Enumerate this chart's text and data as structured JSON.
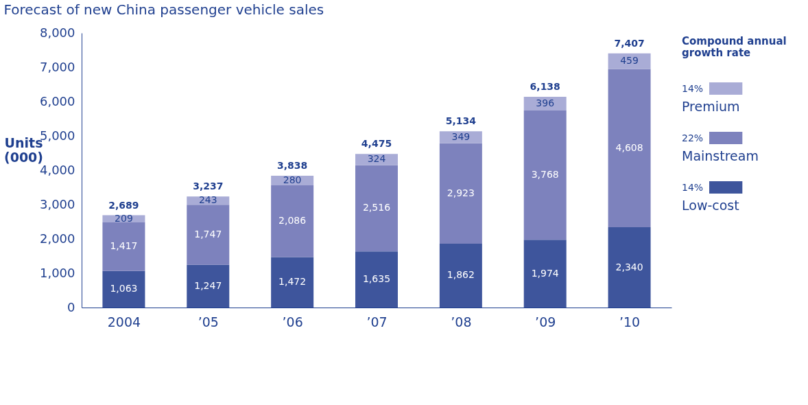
{
  "chart_data": {
    "type": "bar",
    "title": "Forecast of new China passenger vehicle sales",
    "ylabel": "Units\n(000)",
    "legend_title": "Compound annual\ngrowth rate",
    "categories": [
      "2004",
      "’05",
      "’06",
      "’07",
      "’08",
      "’09",
      "’10"
    ],
    "series": [
      {
        "name": "Low-cost",
        "color": "#3e559c",
        "values": [
          1063,
          1247,
          1472,
          1635,
          1862,
          1974,
          2340
        ],
        "value_labels": [
          "1,063",
          "1,247",
          "1,472",
          "1,635",
          "1,862",
          "1,974",
          "2,340"
        ]
      },
      {
        "name": "Mainstream",
        "color": "#7d82bd",
        "values": [
          1417,
          1747,
          2086,
          2516,
          2923,
          3768,
          4608
        ],
        "value_labels": [
          "1,417",
          "1,747",
          "2,086",
          "2,516",
          "2,923",
          "3,768",
          "4,608"
        ]
      },
      {
        "name": "Premium",
        "color": "#a9acd6",
        "values": [
          209,
          243,
          280,
          324,
          349,
          396,
          459
        ],
        "value_labels": [
          "209",
          "243",
          "280",
          "324",
          "349",
          "396",
          "459"
        ]
      }
    ],
    "stacked": true,
    "totals": [
      "2,689",
      "3,237",
      "3,838",
      "4,475",
      "5,134",
      "6,138",
      "7,407"
    ],
    "ylim": [
      0,
      8000
    ],
    "yticks": [
      0,
      {
        "value": 1000,
        "label": "1,000"
      },
      {
        "value": 2000,
        "label": "2,000"
      },
      {
        "value": 3000,
        "label": "3,000"
      },
      {
        "value": 4000,
        "label": "4,000"
      },
      {
        "value": 5000,
        "label": "5,000"
      },
      {
        "value": 6000,
        "label": "6,000"
      },
      {
        "value": 7000,
        "label": "7,000"
      },
      {
        "value": 8000,
        "label": "8,000"
      }
    ],
    "grid": false,
    "legend": "right",
    "annotations": [
      "14%",
      "22%",
      "14%"
    ]
  }
}
